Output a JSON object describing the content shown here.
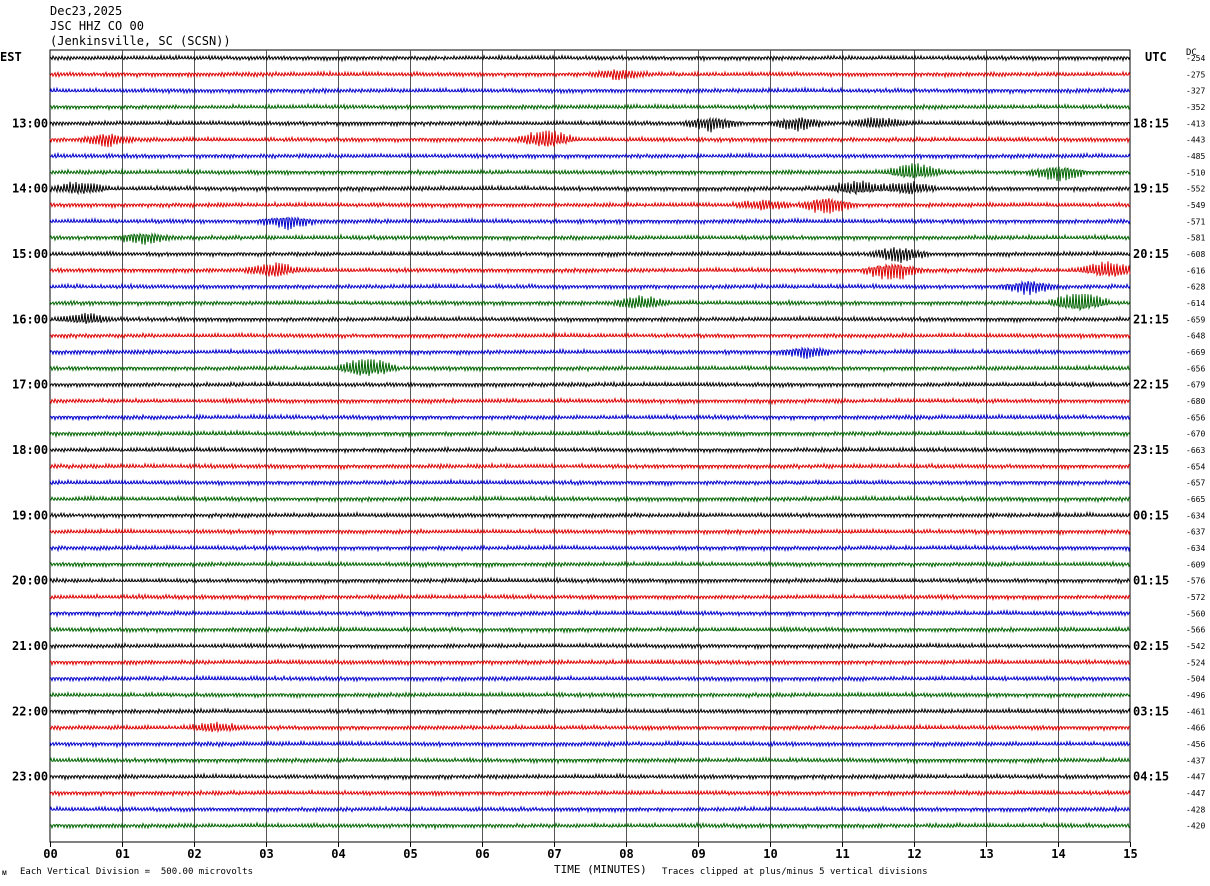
{
  "header": {
    "date": "Dec23,2025",
    "station": "JSC HHZ CO 00",
    "location": "(Jenkinsville, SC (SCSN))"
  },
  "left_timezone": "EST",
  "right_timezone": "UTC",
  "dc_label": "DC",
  "footer": {
    "scale_note": "Each Vertical Division =  500.00 microvolts",
    "xlabel": "TIME (MINUTES)",
    "clip_note": "Traces clipped at plus/minus 5 vertical divisions"
  },
  "chart_data": {
    "type": "helicorder",
    "xlabel": "TIME (MINUTES)",
    "xlim": [
      0,
      15
    ],
    "x_ticks": [
      "00",
      "01",
      "02",
      "03",
      "04",
      "05",
      "06",
      "07",
      "08",
      "09",
      "10",
      "11",
      "12",
      "13",
      "14",
      "15"
    ],
    "trace_minutes": 15,
    "row_count": 48,
    "first_trace_time_est": "12:00",
    "trace_colors": [
      "#000000",
      "#dd0000",
      "#0000cc",
      "#006400"
    ],
    "grid": true,
    "left_hour_labels": [
      {
        "row": 4,
        "label": "13:00"
      },
      {
        "row": 8,
        "label": "14:00"
      },
      {
        "row": 12,
        "label": "15:00"
      },
      {
        "row": 16,
        "label": "16:00"
      },
      {
        "row": 20,
        "label": "17:00"
      },
      {
        "row": 24,
        "label": "18:00"
      },
      {
        "row": 28,
        "label": "19:00"
      },
      {
        "row": 32,
        "label": "20:00"
      },
      {
        "row": 36,
        "label": "21:00"
      },
      {
        "row": 40,
        "label": "22:00"
      },
      {
        "row": 44,
        "label": "23:00"
      }
    ],
    "right_hour_labels": [
      {
        "row": 4,
        "label": "18:15"
      },
      {
        "row": 8,
        "label": "19:15"
      },
      {
        "row": 12,
        "label": "20:15"
      },
      {
        "row": 16,
        "label": "21:15"
      },
      {
        "row": 20,
        "label": "22:15"
      },
      {
        "row": 24,
        "label": "23:15"
      },
      {
        "row": 28,
        "label": "00:15"
      },
      {
        "row": 32,
        "label": "01:15"
      },
      {
        "row": 36,
        "label": "02:15"
      },
      {
        "row": 40,
        "label": "03:15"
      },
      {
        "row": 44,
        "label": "04:15"
      }
    ],
    "dc_offsets": [
      "-254",
      "-275",
      "-327",
      "-352",
      "-413",
      "-443",
      "-485",
      "-510",
      "-552",
      "-549",
      "-571",
      "-581",
      "-608",
      "-616",
      "-628",
      "-614",
      "-659",
      "-648",
      "-669",
      "-656",
      "-679",
      "-680",
      "-656",
      "-670",
      "-663",
      "-654",
      "-657",
      "-665",
      "-634",
      "-637",
      "-634",
      "-609",
      "-576",
      "-572",
      "-560",
      "-566",
      "-542",
      "-524",
      "-504",
      "-496",
      "-461",
      "-466",
      "-456",
      "-437",
      "-447",
      "-447",
      "-428",
      "-420"
    ],
    "events": [
      {
        "row": 1,
        "minute": 7.9,
        "strength": 0.8
      },
      {
        "row": 4,
        "minute": 9.2,
        "strength": 1.4
      },
      {
        "row": 4,
        "minute": 10.4,
        "strength": 1.3
      },
      {
        "row": 4,
        "minute": 11.5,
        "strength": 1.0
      },
      {
        "row": 5,
        "minute": 0.8,
        "strength": 1.2
      },
      {
        "row": 5,
        "minute": 6.9,
        "strength": 1.9
      },
      {
        "row": 7,
        "minute": 12.0,
        "strength": 1.6
      },
      {
        "row": 7,
        "minute": 14.0,
        "strength": 1.5
      },
      {
        "row": 8,
        "minute": 0.4,
        "strength": 1.3
      },
      {
        "row": 8,
        "minute": 11.2,
        "strength": 1.5
      },
      {
        "row": 8,
        "minute": 11.9,
        "strength": 1.2
      },
      {
        "row": 9,
        "minute": 10.8,
        "strength": 1.6
      },
      {
        "row": 9,
        "minute": 9.9,
        "strength": 1.0
      },
      {
        "row": 10,
        "minute": 3.3,
        "strength": 1.2
      },
      {
        "row": 11,
        "minute": 1.3,
        "strength": 1.0
      },
      {
        "row": 12,
        "minute": 11.8,
        "strength": 1.4
      },
      {
        "row": 13,
        "minute": 3.1,
        "strength": 1.3
      },
      {
        "row": 13,
        "minute": 11.7,
        "strength": 2.0
      },
      {
        "row": 13,
        "minute": 14.7,
        "strength": 1.6
      },
      {
        "row": 14,
        "minute": 13.6,
        "strength": 1.3
      },
      {
        "row": 15,
        "minute": 14.3,
        "strength": 2.2
      },
      {
        "row": 15,
        "minute": 8.2,
        "strength": 1.2
      },
      {
        "row": 16,
        "minute": 0.5,
        "strength": 1.0
      },
      {
        "row": 18,
        "minute": 10.5,
        "strength": 1.0
      },
      {
        "row": 19,
        "minute": 4.4,
        "strength": 2.0
      },
      {
        "row": 41,
        "minute": 2.3,
        "strength": 0.9
      }
    ]
  }
}
